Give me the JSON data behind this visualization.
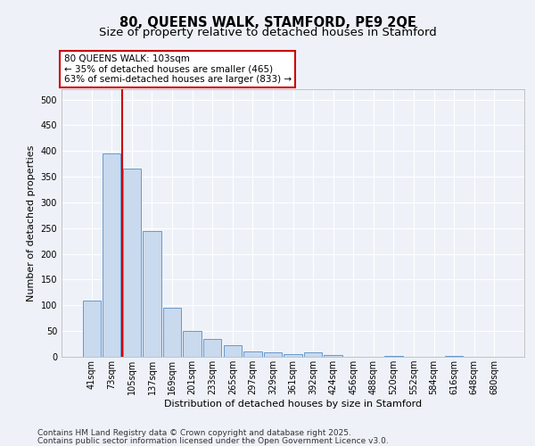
{
  "title1": "80, QUEENS WALK, STAMFORD, PE9 2QE",
  "title2": "Size of property relative to detached houses in Stamford",
  "xlabel": "Distribution of detached houses by size in Stamford",
  "ylabel": "Number of detached properties",
  "categories": [
    "41sqm",
    "73sqm",
    "105sqm",
    "137sqm",
    "169sqm",
    "201sqm",
    "233sqm",
    "265sqm",
    "297sqm",
    "329sqm",
    "361sqm",
    "392sqm",
    "424sqm",
    "456sqm",
    "488sqm",
    "520sqm",
    "552sqm",
    "584sqm",
    "616sqm",
    "648sqm",
    "680sqm"
  ],
  "values": [
    110,
    395,
    365,
    245,
    95,
    50,
    35,
    22,
    10,
    8,
    5,
    8,
    3,
    0,
    0,
    2,
    0,
    0,
    2,
    0,
    0
  ],
  "bar_color": "#c9d9ee",
  "bar_edge_color": "#6699cc",
  "red_line_index": 2,
  "annotation_text": "80 QUEENS WALK: 103sqm\n← 35% of detached houses are smaller (465)\n63% of semi-detached houses are larger (833) →",
  "annotation_box_color": "#ffffff",
  "annotation_box_edge_color": "#cc0000",
  "property_line_color": "#cc0000",
  "background_color": "#eef2f8",
  "plot_bg_color": "#eef2f8",
  "grid_color": "#ffffff",
  "ylim": [
    0,
    520
  ],
  "yticks": [
    0,
    50,
    100,
    150,
    200,
    250,
    300,
    350,
    400,
    450,
    500
  ],
  "footer1": "Contains HM Land Registry data © Crown copyright and database right 2025.",
  "footer2": "Contains public sector information licensed under the Open Government Licence v3.0.",
  "title_fontsize": 10.5,
  "subtitle_fontsize": 9.5,
  "tick_fontsize": 7,
  "label_fontsize": 8,
  "footer_fontsize": 6.5,
  "ann_fontsize": 7.5
}
